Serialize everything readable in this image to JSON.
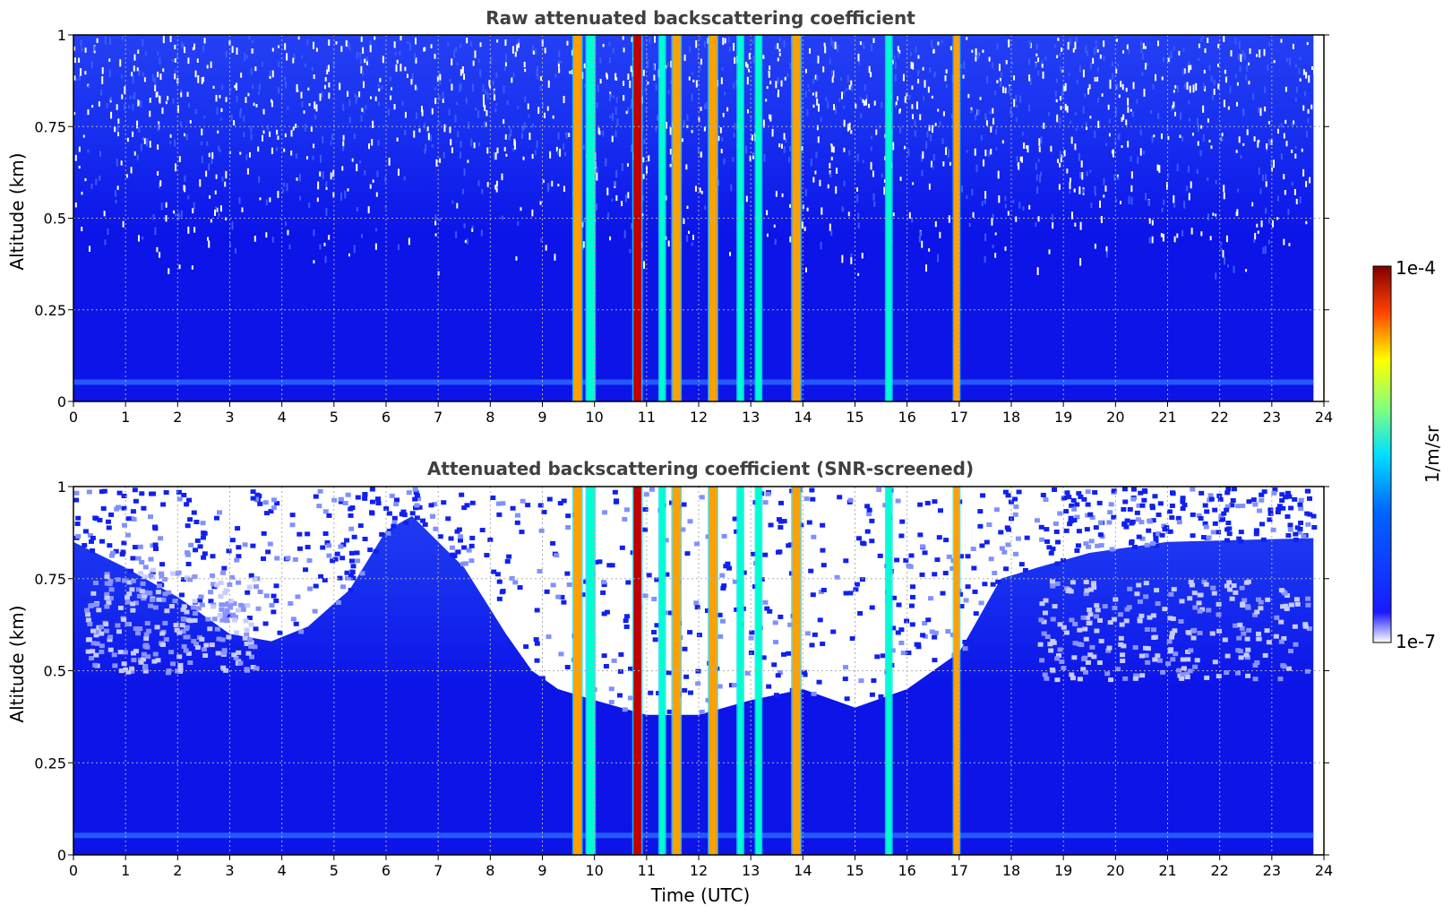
{
  "chart_data": [
    {
      "type": "heatmap",
      "title": "Raw attenuated backscattering coefficient",
      "xlabel": "",
      "ylabel": "Altitude (km)",
      "xlim": [
        0,
        24
      ],
      "ylim": [
        0,
        1
      ],
      "x_ticks": [
        "0",
        "1",
        "2",
        "3",
        "4",
        "5",
        "6",
        "7",
        "8",
        "9",
        "10",
        "11",
        "12",
        "13",
        "14",
        "15",
        "16",
        "17",
        "18",
        "19",
        "20",
        "21",
        "22",
        "23",
        "24"
      ],
      "y_ticks": [
        "0",
        "0.25",
        "0.5",
        "0.75",
        "1"
      ],
      "data_extent_x": [
        0,
        23.8
      ],
      "grid": true,
      "colormap": "jet",
      "colorscale": "log",
      "background_level": "1e-6",
      "strong_features": [
        {
          "x_start": 9.6,
          "x_end": 9.75,
          "level": "high"
        },
        {
          "x_start": 9.85,
          "x_end": 10.0,
          "level": "medium"
        },
        {
          "x_start": 10.75,
          "x_end": 10.9,
          "level": "very high"
        },
        {
          "x_start": 11.25,
          "x_end": 11.35,
          "level": "medium"
        },
        {
          "x_start": 11.5,
          "x_end": 11.65,
          "level": "high"
        },
        {
          "x_start": 12.2,
          "x_end": 12.35,
          "level": "high"
        },
        {
          "x_start": 12.75,
          "x_end": 12.85,
          "level": "medium"
        },
        {
          "x_start": 13.1,
          "x_end": 13.2,
          "level": "medium"
        },
        {
          "x_start": 13.8,
          "x_end": 13.95,
          "level": "high"
        },
        {
          "x_start": 15.6,
          "x_end": 15.7,
          "level": "medium"
        },
        {
          "x_start": 16.9,
          "x_end": 17.0,
          "level": "high"
        }
      ]
    },
    {
      "type": "heatmap",
      "title": "Attenuated backscattering coefficient (SNR-screened)",
      "xlabel": "Time (UTC)",
      "ylabel": "Altitude (km)",
      "xlim": [
        0,
        24
      ],
      "ylim": [
        0,
        1
      ],
      "x_ticks": [
        "0",
        "1",
        "2",
        "3",
        "4",
        "5",
        "6",
        "7",
        "8",
        "9",
        "10",
        "11",
        "12",
        "13",
        "14",
        "15",
        "16",
        "17",
        "18",
        "19",
        "20",
        "21",
        "22",
        "23",
        "24"
      ],
      "y_ticks": [
        "0",
        "0.25",
        "0.5",
        "0.75",
        "1"
      ],
      "data_extent_x": [
        0,
        23.8
      ],
      "grid": true,
      "colormap": "jet",
      "colorscale": "log",
      "screened_region": "white where signal-to-noise is low, mostly above 0.5 km",
      "strong_features": [
        {
          "x_start": 9.6,
          "x_end": 9.75,
          "level": "high"
        },
        {
          "x_start": 9.85,
          "x_end": 10.0,
          "level": "medium"
        },
        {
          "x_start": 10.75,
          "x_end": 10.9,
          "level": "very high"
        },
        {
          "x_start": 11.25,
          "x_end": 11.35,
          "level": "medium"
        },
        {
          "x_start": 11.5,
          "x_end": 11.65,
          "level": "high"
        },
        {
          "x_start": 12.2,
          "x_end": 12.35,
          "level": "high"
        },
        {
          "x_start": 12.75,
          "x_end": 12.85,
          "level": "medium"
        },
        {
          "x_start": 13.1,
          "x_end": 13.2,
          "level": "medium"
        },
        {
          "x_start": 13.8,
          "x_end": 13.95,
          "level": "high"
        },
        {
          "x_start": 15.6,
          "x_end": 15.7,
          "level": "medium"
        },
        {
          "x_start": 16.9,
          "x_end": 17.0,
          "level": "high"
        }
      ]
    }
  ],
  "colorbar": {
    "label": "1/m/sr",
    "max_label": "1e-4",
    "min_label": "1e-7",
    "colormap": "jet"
  }
}
